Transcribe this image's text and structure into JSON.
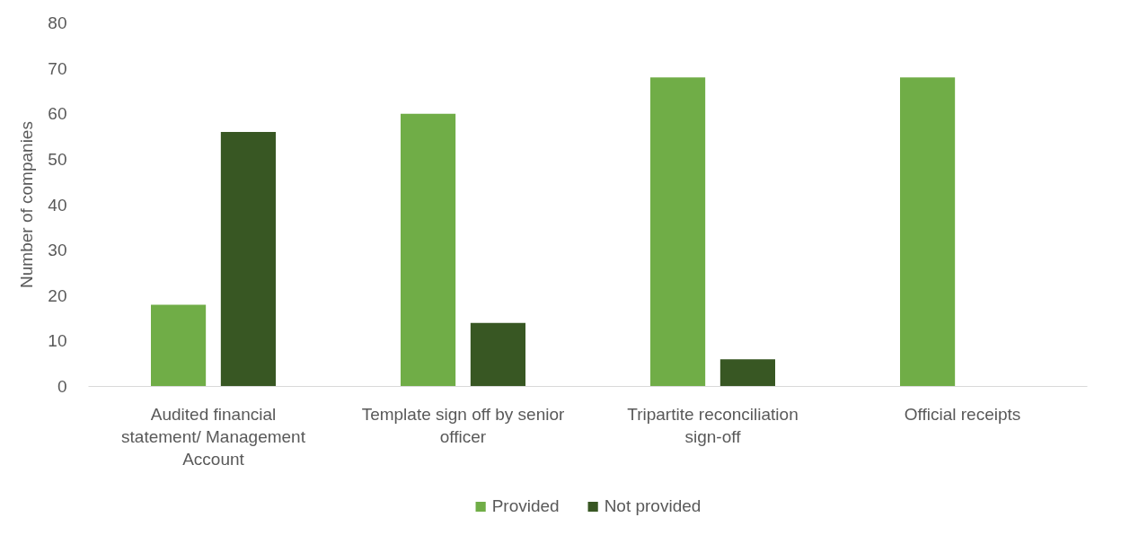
{
  "chart_data": {
    "type": "bar",
    "ylabel": "Number of companies",
    "categories": [
      "Audited financial statement/ Management Account",
      "Template sign off by senior officer",
      "Tripartite reconciliation sign-off",
      "Official receipts"
    ],
    "series": [
      {
        "name": "Provided",
        "color": "#70ad47",
        "values": [
          18,
          60,
          68,
          68
        ]
      },
      {
        "name": "Not provided",
        "color": "#385723",
        "values": [
          56,
          14,
          6,
          0
        ]
      }
    ],
    "ylim": [
      0,
      80
    ],
    "yticks": [
      0,
      10,
      20,
      30,
      40,
      50,
      60,
      70,
      80
    ],
    "legend": "bottom"
  }
}
